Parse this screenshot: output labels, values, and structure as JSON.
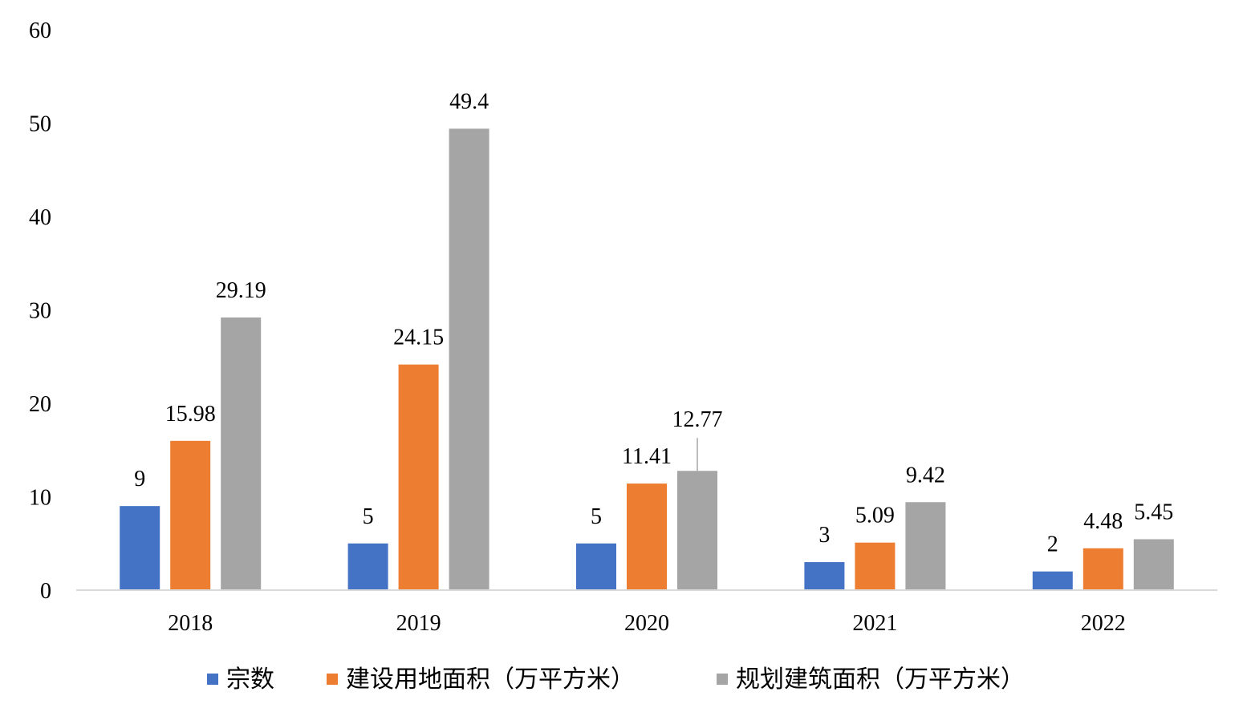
{
  "chart_data": {
    "type": "bar",
    "categories": [
      "2018",
      "2019",
      "2020",
      "2021",
      "2022"
    ],
    "series": [
      {
        "name": "宗数",
        "values": [
          9,
          5,
          5,
          3,
          2
        ],
        "color": "#4472C4"
      },
      {
        "name": "建设用地面积（万平方米）",
        "values": [
          15.98,
          24.15,
          11.41,
          5.09,
          4.48
        ],
        "color": "#ED7D31"
      },
      {
        "name": "规划建筑面积（万平方米）",
        "values": [
          29.19,
          49.4,
          12.77,
          9.42,
          5.45
        ],
        "color": "#A5A5A5"
      }
    ],
    "ylim": [
      0,
      60
    ],
    "yticks": [
      0,
      10,
      20,
      30,
      40,
      50,
      60
    ],
    "grid": false,
    "data_labels": true,
    "legend_position": "bottom",
    "axis_color": "#D9D9D9",
    "leader_line_color": "#A5A5A5"
  }
}
